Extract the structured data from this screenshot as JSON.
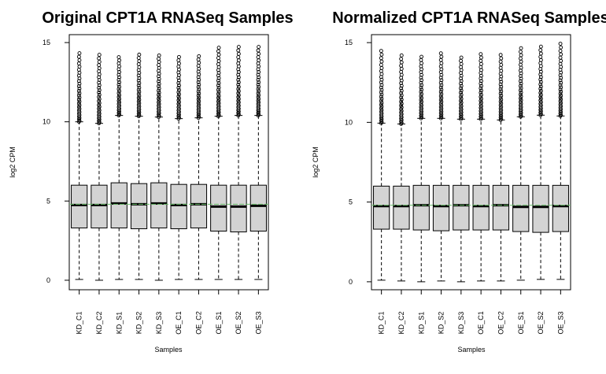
{
  "chart_data": [
    {
      "type": "boxplot",
      "title": "Original CPT1A RNASeq Samples",
      "xlabel": "Samples",
      "ylabel": "log2 CPM",
      "ylim": [
        -0.6,
        15.5
      ],
      "yticks": [
        0,
        5,
        10,
        15
      ],
      "grid": false,
      "reference_line": {
        "y": 4.8,
        "color": "#66bb66"
      },
      "categories": [
        "KD_C1",
        "KD_C2",
        "KD_S1",
        "KD_S2",
        "KD_S3",
        "OE_C1",
        "OE_C2",
        "OE_S1",
        "OE_S2",
        "OE_S3"
      ],
      "boxes": [
        {
          "min": 0.05,
          "q1": 3.3,
          "median": 4.75,
          "q3": 6.0,
          "max": 10.0,
          "outliers_from": 10.0,
          "outliers_to": 14.5
        },
        {
          "min": 0.0,
          "q1": 3.3,
          "median": 4.75,
          "q3": 6.0,
          "max": 9.9,
          "outliers_from": 9.9,
          "outliers_to": 14.4
        },
        {
          "min": 0.05,
          "q1": 3.3,
          "median": 4.85,
          "q3": 6.15,
          "max": 10.4,
          "outliers_from": 10.4,
          "outliers_to": 14.25
        },
        {
          "min": 0.05,
          "q1": 3.25,
          "median": 4.8,
          "q3": 6.1,
          "max": 10.35,
          "outliers_from": 10.35,
          "outliers_to": 14.4
        },
        {
          "min": 0.0,
          "q1": 3.3,
          "median": 4.85,
          "q3": 6.15,
          "max": 10.3,
          "outliers_from": 10.3,
          "outliers_to": 14.3
        },
        {
          "min": 0.05,
          "q1": 3.25,
          "median": 4.75,
          "q3": 6.05,
          "max": 10.2,
          "outliers_from": 10.2,
          "outliers_to": 14.3
        },
        {
          "min": 0.05,
          "q1": 3.3,
          "median": 4.8,
          "q3": 6.05,
          "max": 10.25,
          "outliers_from": 10.25,
          "outliers_to": 14.3
        },
        {
          "min": 0.05,
          "q1": 3.1,
          "median": 4.65,
          "q3": 6.0,
          "max": 10.35,
          "outliers_from": 10.35,
          "outliers_to": 14.8
        },
        {
          "min": 0.05,
          "q1": 3.05,
          "median": 4.65,
          "q3": 6.0,
          "max": 10.4,
          "outliers_from": 10.4,
          "outliers_to": 14.85
        },
        {
          "min": 0.05,
          "q1": 3.1,
          "median": 4.7,
          "q3": 6.0,
          "max": 10.4,
          "outliers_from": 10.4,
          "outliers_to": 14.85
        }
      ]
    },
    {
      "type": "boxplot",
      "title": "Normalized CPT1A RNASeq Samples",
      "xlabel": "Samples",
      "ylabel": "log2 CPM",
      "ylim": [
        -0.5,
        15.5
      ],
      "yticks": [
        0,
        5,
        10,
        15
      ],
      "grid": false,
      "reference_line": {
        "y": 4.8,
        "color": "#66bb66"
      },
      "categories": [
        "KD_C1",
        "KD_C2",
        "KD_S1",
        "KD_S2",
        "KD_S3",
        "OE_C1",
        "OE_C2",
        "OE_S1",
        "OE_S2",
        "OE_S3"
      ],
      "boxes": [
        {
          "min": 0.1,
          "q1": 3.3,
          "median": 4.75,
          "q3": 6.0,
          "max": 9.95,
          "outliers_from": 9.95,
          "outliers_to": 14.5
        },
        {
          "min": 0.05,
          "q1": 3.3,
          "median": 4.75,
          "q3": 6.0,
          "max": 9.9,
          "outliers_from": 9.9,
          "outliers_to": 14.4
        },
        {
          "min": 0.0,
          "q1": 3.25,
          "median": 4.8,
          "q3": 6.05,
          "max": 10.25,
          "outliers_from": 10.25,
          "outliers_to": 14.2
        },
        {
          "min": 0.05,
          "q1": 3.2,
          "median": 4.75,
          "q3": 6.05,
          "max": 10.25,
          "outliers_from": 10.25,
          "outliers_to": 14.4
        },
        {
          "min": 0.0,
          "q1": 3.25,
          "median": 4.8,
          "q3": 6.05,
          "max": 10.2,
          "outliers_from": 10.2,
          "outliers_to": 14.2
        },
        {
          "min": 0.05,
          "q1": 3.25,
          "median": 4.75,
          "q3": 6.05,
          "max": 10.2,
          "outliers_from": 10.2,
          "outliers_to": 14.3
        },
        {
          "min": 0.05,
          "q1": 3.25,
          "median": 4.8,
          "q3": 6.05,
          "max": 10.15,
          "outliers_from": 10.15,
          "outliers_to": 14.25
        },
        {
          "min": 0.1,
          "q1": 3.15,
          "median": 4.7,
          "q3": 6.05,
          "max": 10.35,
          "outliers_from": 10.35,
          "outliers_to": 14.85
        },
        {
          "min": 0.15,
          "q1": 3.1,
          "median": 4.7,
          "q3": 6.05,
          "max": 10.45,
          "outliers_from": 10.45,
          "outliers_to": 14.9
        },
        {
          "min": 0.15,
          "q1": 3.15,
          "median": 4.75,
          "q3": 6.05,
          "max": 10.4,
          "outliers_from": 10.4,
          "outliers_to": 14.95
        }
      ]
    }
  ]
}
